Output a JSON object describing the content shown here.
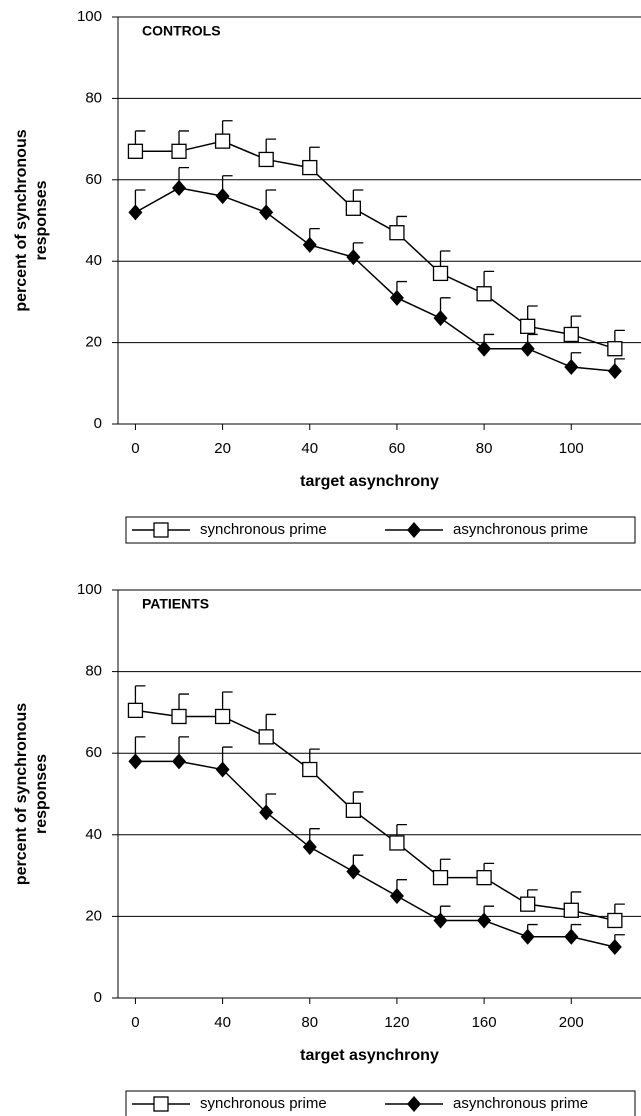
{
  "chart_data": [
    {
      "type": "line",
      "title": "CONTROLS",
      "xlabel": "target asynchrony",
      "ylabel": [
        "percent of synchronous",
        "responses"
      ],
      "x": [
        0,
        10,
        20,
        30,
        40,
        50,
        60,
        70,
        80,
        90,
        100,
        110
      ],
      "series": [
        {
          "name": "synchronous prime",
          "color": "#000000",
          "marker": "square",
          "values": [
            67,
            67,
            69.5,
            65,
            63,
            53,
            47,
            37,
            32,
            24,
            22,
            18.5
          ],
          "errors": [
            5,
            5,
            5,
            5,
            5,
            4.5,
            4,
            5.5,
            5.5,
            5,
            4.5,
            4.5
          ]
        },
        {
          "name": "asynchronous prime",
          "color": "#000000",
          "marker": "diamond",
          "values": [
            52,
            58,
            56,
            52,
            44,
            41,
            31,
            26,
            18.5,
            18.5,
            14,
            13
          ],
          "errors": [
            5.5,
            5,
            5,
            5.5,
            4,
            3.5,
            4,
            5,
            3.5,
            3.5,
            3.5,
            3
          ]
        }
      ],
      "xlim": [
        -4,
        116
      ],
      "xticks": [
        0,
        20,
        40,
        60,
        80,
        100
      ],
      "ylim": [
        0,
        100
      ],
      "yticks": [
        0,
        20,
        40,
        60,
        80,
        100
      ],
      "grid": true
    },
    {
      "type": "line",
      "title": "PATIENTS",
      "xlabel": "target asynchrony",
      "ylabel": [
        "percent of synchronous",
        "responses"
      ],
      "x": [
        0,
        20,
        40,
        60,
        80,
        100,
        120,
        140,
        160,
        180,
        200,
        220
      ],
      "series": [
        {
          "name": "synchronous prime",
          "color": "#000000",
          "marker": "square",
          "values": [
            70.5,
            69,
            69,
            64,
            56,
            46,
            38,
            29.5,
            29.5,
            23,
            21.5,
            19
          ],
          "errors": [
            6,
            5.5,
            6,
            5.5,
            5,
            4.5,
            4.5,
            4.5,
            3.5,
            3.5,
            4.5,
            4
          ]
        },
        {
          "name": "asynchronous prime",
          "color": "#000000",
          "marker": "diamond",
          "values": [
            58,
            58,
            56,
            45.5,
            37,
            31,
            25,
            19,
            19,
            15,
            15,
            12.5
          ],
          "errors": [
            6,
            6,
            5.5,
            4.5,
            4.5,
            4,
            4,
            3.5,
            3.5,
            3,
            3,
            3
          ]
        }
      ],
      "xlim": [
        -8,
        232
      ],
      "xticks": [
        0,
        40,
        80,
        120,
        160,
        200
      ],
      "ylim": [
        0,
        100
      ],
      "yticks": [
        0,
        20,
        40,
        60,
        80,
        100
      ],
      "grid": true
    }
  ]
}
